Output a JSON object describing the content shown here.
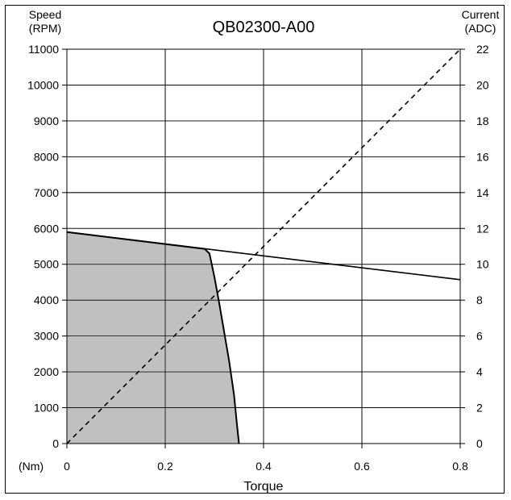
{
  "chart_data": {
    "type": "line",
    "title": "QB02300-A00",
    "xlabel": "Torque",
    "x_unit_label": "(Nm)",
    "left_axis_label": [
      "Speed",
      "(RPM)"
    ],
    "right_axis_label": [
      "Current",
      "(ADC)"
    ],
    "xlim": [
      0,
      0.8
    ],
    "ylim_left": [
      0,
      11000
    ],
    "ylim_right": [
      0,
      22
    ],
    "x_ticks": [
      "0",
      "0.2",
      "0.4",
      "0.6",
      "0.8"
    ],
    "y_left_ticks": [
      "0",
      "1000",
      "2000",
      "3000",
      "4000",
      "5000",
      "6000",
      "7000",
      "8000",
      "9000",
      "10000",
      "11000"
    ],
    "y_right_ticks": [
      "0",
      "2",
      "4",
      "6",
      "8",
      "10",
      "12",
      "14",
      "16",
      "18",
      "20",
      "22"
    ],
    "grid": true,
    "series": [
      {
        "style": "solid",
        "axis": "left",
        "x": [
          0,
          0.8
        ],
        "y": [
          5900,
          4570
        ]
      },
      {
        "style": "filled-region",
        "axis": "left",
        "fill": "#c0c0c0",
        "x": [
          0,
          0.28,
          0.29,
          0.3,
          0.31,
          0.32,
          0.33,
          0.34,
          0.345,
          0.35
        ],
        "y": [
          5900,
          5430,
          5300,
          4650,
          3900,
          3100,
          2300,
          1350,
          650,
          0
        ]
      },
      {
        "style": "dashed",
        "axis": "right",
        "x": [
          0,
          0.8
        ],
        "y": [
          0,
          22
        ]
      }
    ]
  }
}
